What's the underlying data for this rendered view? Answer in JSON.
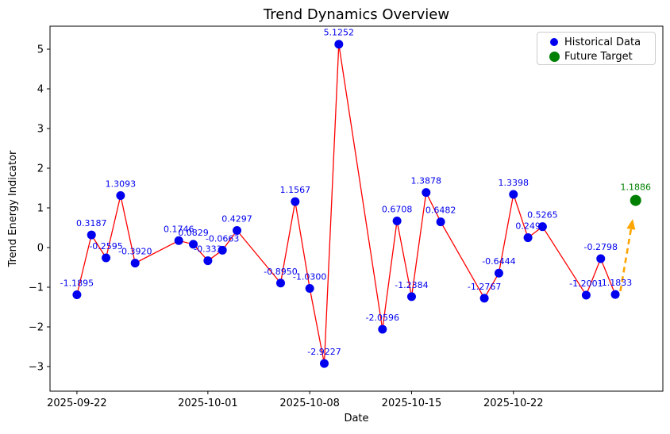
{
  "title": "Trend Dynamics Overview",
  "axes": {
    "xlabel": "Date",
    "ylabel": "Trend Energy Indicator"
  },
  "legend": {
    "items": [
      {
        "label": "Historical Data",
        "color": "#0000EE"
      },
      {
        "label": "Future Target",
        "color": "#008000"
      }
    ]
  },
  "chart_data": {
    "type": "line",
    "title": "Trend Dynamics Overview",
    "xlabel": "Date",
    "ylabel": "Trend Energy Indicator",
    "grid": false,
    "legend_position": "top-right",
    "x_ticks": [
      {
        "day": 0,
        "label": "2025-09-22"
      },
      {
        "day": 9,
        "label": "2025-10-01"
      },
      {
        "day": 16,
        "label": "2025-10-08"
      },
      {
        "day": 23,
        "label": "2025-10-15"
      },
      {
        "day": 30,
        "label": "2025-10-22"
      }
    ],
    "y_ticks": [
      {
        "v": 5,
        "label": "5"
      },
      {
        "v": 4,
        "label": "4"
      },
      {
        "v": 3,
        "label": "3"
      },
      {
        "v": 2,
        "label": "2"
      },
      {
        "v": 1,
        "label": "1"
      },
      {
        "v": 0,
        "label": "0"
      },
      {
        "v": -1,
        "label": "−1"
      },
      {
        "v": -2,
        "label": "−2"
      },
      {
        "v": -3,
        "label": "−3"
      }
    ],
    "xlim_days": [
      -1.85,
      40.27
    ],
    "ylim": [
      -3.62,
      5.58
    ],
    "series": [
      {
        "name": "Historical Data",
        "marker_color": "#0000EE",
        "label_color": "#0000EE",
        "line_color": "#FF0000",
        "marker_radius": 5.5,
        "points": [
          {
            "day": 0,
            "value": -1.1895,
            "label": "-1.1895"
          },
          {
            "day": 1,
            "value": 0.3187,
            "label": "0.3187"
          },
          {
            "day": 2,
            "value": -0.2595,
            "label": "-0.2595"
          },
          {
            "day": 3,
            "value": 1.3093,
            "label": "1.3093"
          },
          {
            "day": 4,
            "value": -0.392,
            "label": "-0.3920"
          },
          {
            "day": 7,
            "value": 0.1746,
            "label": "0.1746"
          },
          {
            "day": 8,
            "value": 0.0829,
            "label": "0.0829"
          },
          {
            "day": 9,
            "value": -0.333,
            "label": "-0.333"
          },
          {
            "day": 10,
            "value": -0.0663,
            "label": "-0.0663"
          },
          {
            "day": 11,
            "value": 0.4297,
            "label": "0.4297"
          },
          {
            "day": 14,
            "value": -0.895,
            "label": "-0.8950"
          },
          {
            "day": 15,
            "value": 1.1567,
            "label": "1.1567"
          },
          {
            "day": 16,
            "value": -1.03,
            "label": "-1.0300"
          },
          {
            "day": 17,
            "value": -2.9227,
            "label": "-2.9227"
          },
          {
            "day": 18,
            "value": 5.1252,
            "label": "5.1252"
          },
          {
            "day": 21,
            "value": -2.0596,
            "label": "-2.0596"
          },
          {
            "day": 22,
            "value": 0.6708,
            "label": "0.6708"
          },
          {
            "day": 23,
            "value": -1.2384,
            "label": "-1.2384"
          },
          {
            "day": 24,
            "value": 1.3878,
            "label": "1.3878"
          },
          {
            "day": 25,
            "value": 0.6482,
            "label": "0.6482"
          },
          {
            "day": 28,
            "value": -1.2767,
            "label": "-1.2767"
          },
          {
            "day": 29,
            "value": -0.6444,
            "label": "-0.6444"
          },
          {
            "day": 30,
            "value": 1.3398,
            "label": "1.3398"
          },
          {
            "day": 31,
            "value": 0.249,
            "label": "0.249"
          },
          {
            "day": 32,
            "value": 0.5265,
            "label": "0.5265"
          },
          {
            "day": 35,
            "value": -1.2001,
            "label": "-1.2001"
          },
          {
            "day": 36,
            "value": -0.2798,
            "label": "-0.2798"
          },
          {
            "day": 37,
            "value": -1.1833,
            "label": "-1.1833"
          }
        ]
      }
    ],
    "future_target": {
      "name": "Future Target",
      "day": 38.4,
      "value": 1.1886,
      "label": "1.1886",
      "color": "#008000",
      "marker_radius": 7
    },
    "arrow": {
      "from_day": 37.35,
      "from_value": -1.1,
      "to_day": 38.2,
      "to_value": 0.72,
      "color": "#FFA500",
      "dash": "7 5",
      "width": 2.6
    }
  }
}
